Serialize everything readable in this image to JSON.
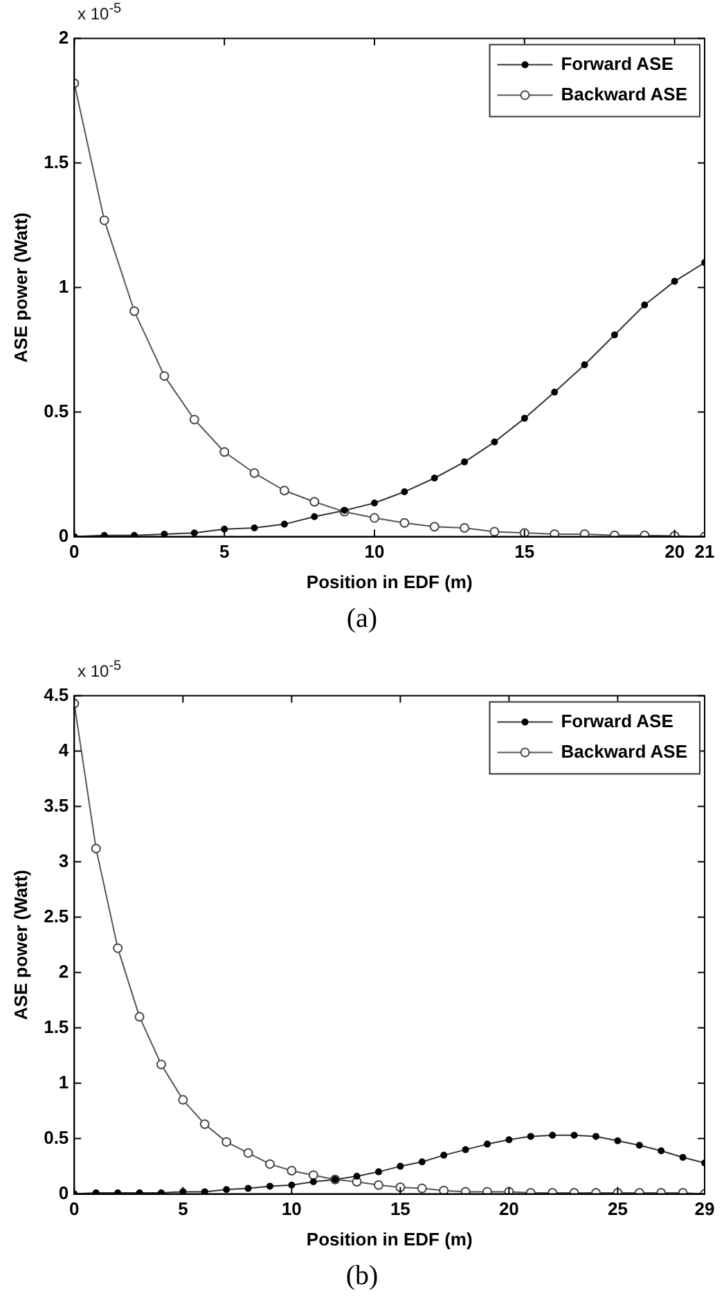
{
  "chart_data": [
    {
      "type": "line",
      "xlabel": "Position in EDF (m)",
      "ylabel": "ASE power (Watt)",
      "annotations": [
        "x 10$^{-5}$",
        "(a)"
      ],
      "x": [
        0,
        1,
        2,
        3,
        4,
        5,
        6,
        7,
        8,
        9,
        10,
        11,
        12,
        13,
        14,
        15,
        16,
        17,
        18,
        19,
        20,
        21
      ],
      "xlim": [
        0,
        21
      ],
      "xticks": [
        0,
        5,
        10,
        15,
        20,
        21
      ],
      "ylim": [
        0,
        2
      ],
      "yticks": [
        0,
        0.5,
        1,
        1.5,
        2
      ],
      "grid": false,
      "legend": "top right",
      "marker": "circle",
      "line_style": "solid",
      "series": [
        {
          "name": "Forward ASE",
          "color": "#333333",
          "values": [
            0,
            0.005,
            0.005,
            0.01,
            0.015,
            0.03,
            0.035,
            0.05,
            0.08,
            0.105,
            0.135,
            0.18,
            0.235,
            0.3,
            0.38,
            0.475,
            0.58,
            0.69,
            0.81,
            0.93,
            1.025,
            1.1
          ]
        },
        {
          "name": "Backward ASE",
          "color": "#555555",
          "values": [
            1.82,
            1.27,
            0.905,
            0.645,
            0.47,
            0.34,
            0.255,
            0.185,
            0.14,
            0.1,
            0.075,
            0.055,
            0.04,
            0.035,
            0.02,
            0.015,
            0.01,
            0.01,
            0.005,
            0.005,
            0.003,
            0
          ]
        }
      ]
    },
    {
      "type": "line",
      "xlabel": "Position in EDF (m)",
      "ylabel": "ASE power (Watt)",
      "annotations": [
        "x 10$^{-5}$",
        "(b)"
      ],
      "x": [
        0,
        1,
        2,
        3,
        4,
        5,
        6,
        7,
        8,
        9,
        10,
        11,
        12,
        13,
        14,
        15,
        16,
        17,
        18,
        19,
        20,
        21,
        22,
        23,
        24,
        25,
        26,
        27,
        28,
        29
      ],
      "xlim": [
        0,
        29
      ],
      "xticks": [
        0,
        5,
        10,
        15,
        20,
        25,
        29
      ],
      "ylim": [
        0,
        4.5
      ],
      "yticks": [
        0,
        0.5,
        1,
        1.5,
        2,
        2.5,
        3,
        3.5,
        4,
        4.5
      ],
      "grid": false,
      "legend": "top right",
      "marker": "circle",
      "line_style": "solid",
      "series": [
        {
          "name": "Forward ASE",
          "color": "#333333",
          "values": [
            0,
            0.01,
            0.01,
            0.01,
            0.01,
            0.02,
            0.02,
            0.04,
            0.05,
            0.07,
            0.08,
            0.11,
            0.13,
            0.16,
            0.2,
            0.25,
            0.29,
            0.35,
            0.4,
            0.45,
            0.49,
            0.52,
            0.53,
            0.53,
            0.52,
            0.48,
            0.44,
            0.39,
            0.33,
            0.28
          ]
        },
        {
          "name": "Backward ASE",
          "color": "#555555",
          "values": [
            4.43,
            3.12,
            2.22,
            1.6,
            1.17,
            0.85,
            0.63,
            0.47,
            0.37,
            0.27,
            0.21,
            0.17,
            0.13,
            0.11,
            0.08,
            0.06,
            0.05,
            0.03,
            0.02,
            0.02,
            0.02,
            0.01,
            0.01,
            0.01,
            0.01,
            0.01,
            0.01,
            0.01,
            0.01,
            0
          ]
        }
      ]
    }
  ]
}
